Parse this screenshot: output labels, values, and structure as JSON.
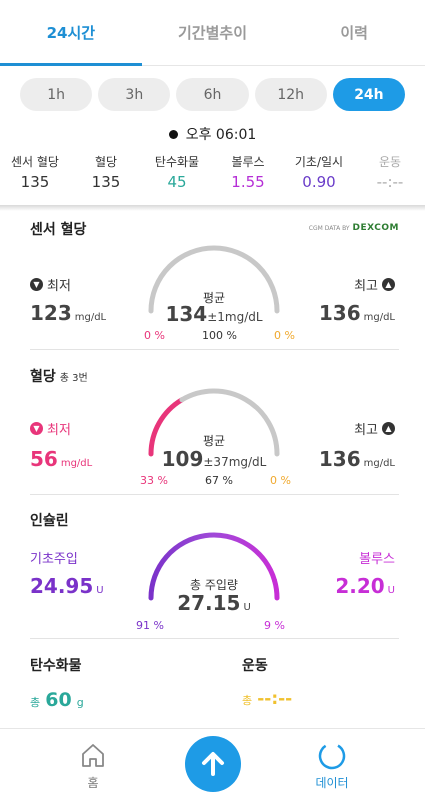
{
  "tabs": [
    {
      "label": "24시간",
      "active": true
    },
    {
      "label": "기간별추이",
      "active": false
    },
    {
      "label": "이력",
      "active": false
    }
  ],
  "ranges": [
    {
      "label": "1h",
      "active": false
    },
    {
      "label": "3h",
      "active": false
    },
    {
      "label": "6h",
      "active": false
    },
    {
      "label": "12h",
      "active": false
    },
    {
      "label": "24h",
      "active": true
    }
  ],
  "time": "오후 06:01",
  "stats": [
    {
      "label": "센서 혈당",
      "value": "135",
      "color": "#333333"
    },
    {
      "label": "혈당",
      "value": "135",
      "color": "#333333"
    },
    {
      "label": "탄수화물",
      "value": "45",
      "color": "#2aa89a"
    },
    {
      "label": "볼루스",
      "value": "1.55",
      "color": "#b52ed6"
    },
    {
      "label": "기초/일시",
      "value": "0.90",
      "color": "#6a3cc9"
    },
    {
      "label": "운동",
      "value": "--:--",
      "color": "#aaaaaa"
    }
  ],
  "sensor": {
    "title": "센서 혈당",
    "dexcom_prefix": "CGM DATA BY",
    "dexcom_brand": "DEXCOM",
    "min_label": "최저",
    "min_value": "123",
    "unit": "mg/dL",
    "max_label": "최고",
    "max_value": "136",
    "avg_label": "평균",
    "avg_value": "134",
    "avg_pm": "±1mg/dL",
    "pct_low": "0 %",
    "pct_mid": "100 %",
    "pct_high": "0 %",
    "fraction_low": 0.0,
    "fraction_mid": 1.0,
    "fraction_high": 0.0
  },
  "bg": {
    "title": "혈당",
    "count": "총 3번",
    "min_label": "최저",
    "min_value": "56",
    "unit": "mg/dL",
    "max_label": "최고",
    "max_value": "136",
    "avg_label": "평균",
    "avg_value": "109",
    "avg_pm": "±37mg/dL",
    "pct_low": "33 %",
    "pct_mid": "67 %",
    "pct_high": "0 %",
    "fraction_low": 0.33,
    "fraction_mid": 0.67,
    "fraction_high": 0.0
  },
  "insulin": {
    "title": "인슐린",
    "basal_label": "기초주입",
    "basal_value": "24.95",
    "bolus_label": "볼루스",
    "bolus_value": "2.20",
    "unit": "U",
    "total_label": "총 주입량",
    "total_value": "27.15",
    "pct_basal": "91 %",
    "pct_bolus": "9 %",
    "fraction_basal": 0.91,
    "fraction_bolus": 0.09
  },
  "carbs": {
    "title": "탄수화물",
    "prefix": "총",
    "value": "60",
    "unit": "g"
  },
  "exercise": {
    "title": "운동",
    "prefix": "총",
    "value": "--:--"
  },
  "nav": {
    "home_label": "홈",
    "data_label": "데이터"
  },
  "colors": {
    "accent": "#1e9be6",
    "low": "#e8357a",
    "high": "#f0a92e",
    "carbs": "#2aa89a",
    "basal": "#7a32c9",
    "bolus": "#c72ed6"
  }
}
